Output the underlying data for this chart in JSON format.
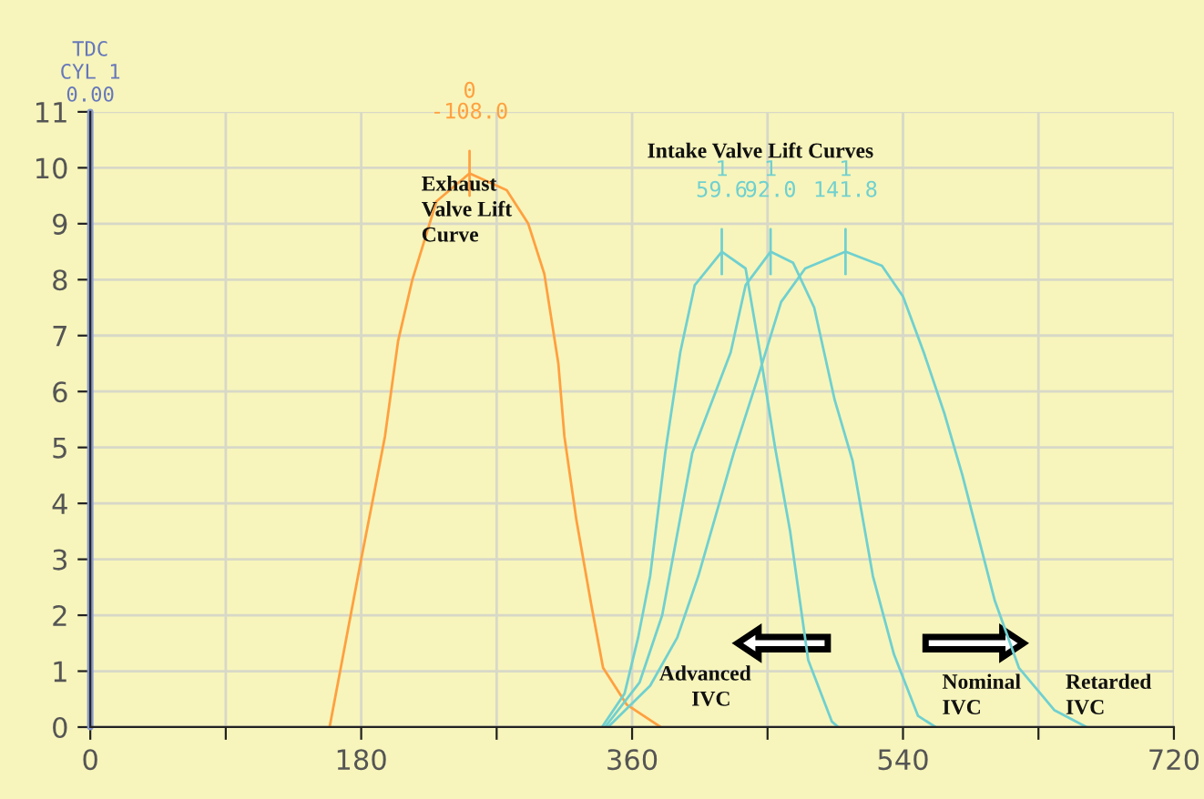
{
  "chart_data": {
    "type": "line",
    "series": [
      {
        "color": "#ffa040",
        "x": [
          159,
          180,
          188.7,
          195.8,
          204.5,
          214,
          230,
          252,
          276.7,
          291,
          301.7,
          311,
          315,
          323,
          332.8,
          340.7,
          356.5,
          379
        ],
        "values": [
          0,
          3.0,
          4.2,
          5.2,
          6.9,
          8.0,
          9.4,
          9.9,
          9.6,
          9.0,
          8.1,
          6.5,
          5.2,
          3.7,
          2.2,
          1.06,
          0.4,
          0
        ]
      },
      {
        "color": "#70d0d0",
        "x": [
          340,
          355,
          364,
          372,
          382,
          392,
          401.6,
          419.6,
          435.4,
          445,
          455,
          465,
          477,
          492.7,
          497
        ],
        "values": [
          0,
          0.6,
          1.6,
          2.7,
          4.9,
          6.7,
          7.9,
          8.5,
          8.2,
          6.7,
          5.0,
          3.5,
          1.2,
          0.1,
          0
        ]
      },
      {
        "color": "#70d0d0",
        "x": [
          342,
          365,
          380,
          400,
          425.5,
          435.4,
          452,
          467,
          481,
          494.6,
          506.5,
          520,
          534,
          550,
          561.7
        ],
        "values": [
          0,
          0.8,
          2.0,
          4.9,
          6.7,
          7.9,
          8.5,
          8.3,
          7.5,
          5.85,
          4.76,
          2.7,
          1.3,
          0.2,
          0
        ]
      },
      {
        "color": "#70d0d0",
        "x": [
          344,
          372,
          390,
          404,
          427.5,
          443,
          459,
          475,
          501.8,
          526,
          540,
          553.8,
          567.6,
          579.5,
          601,
          617,
          640.7,
          662
        ],
        "values": [
          0,
          0.74,
          1.6,
          2.7,
          4.9,
          6.2,
          7.6,
          8.2,
          8.5,
          8.25,
          7.7,
          6.7,
          5.6,
          4.5,
          2.26,
          1.06,
          0.3,
          0
        ]
      }
    ],
    "xlim": [
      0,
      720
    ],
    "xticks": [
      0,
      {
        "value": 90,
        "label": null
      },
      180,
      {
        "value": 270,
        "label": null
      },
      360,
      {
        "value": 450,
        "label": null
      },
      540,
      {
        "value": 630,
        "label": null
      },
      720
    ],
    "ylim": [
      0,
      11
    ],
    "yticks": [
      0,
      1,
      2,
      3,
      4,
      5,
      6,
      7,
      8,
      9,
      10,
      11
    ],
    "grid": true,
    "ref_lines": [
      {
        "axis": "x",
        "value": 0,
        "label": "TDC\nCYL 1\n0.00",
        "color": "#8899cc"
      }
    ],
    "annotations": [
      {
        "text": "0\n-108.0",
        "x": 252,
        "y": 9.9
      },
      {
        "text": "1\n59.6",
        "x": 419.6,
        "y": 8.5
      },
      {
        "text": "1\n92.0",
        "x": 452,
        "y": 8.5
      },
      {
        "text": "1\n141.8",
        "x": 501.8,
        "y": 8.5
      },
      "Exhaust\nValve Lift\nCurve",
      "Intake Valve Lift Curves",
      "Advanced\n      IVC",
      "Nominal\nIVC",
      "Retarded\nIVC"
    ]
  }
}
